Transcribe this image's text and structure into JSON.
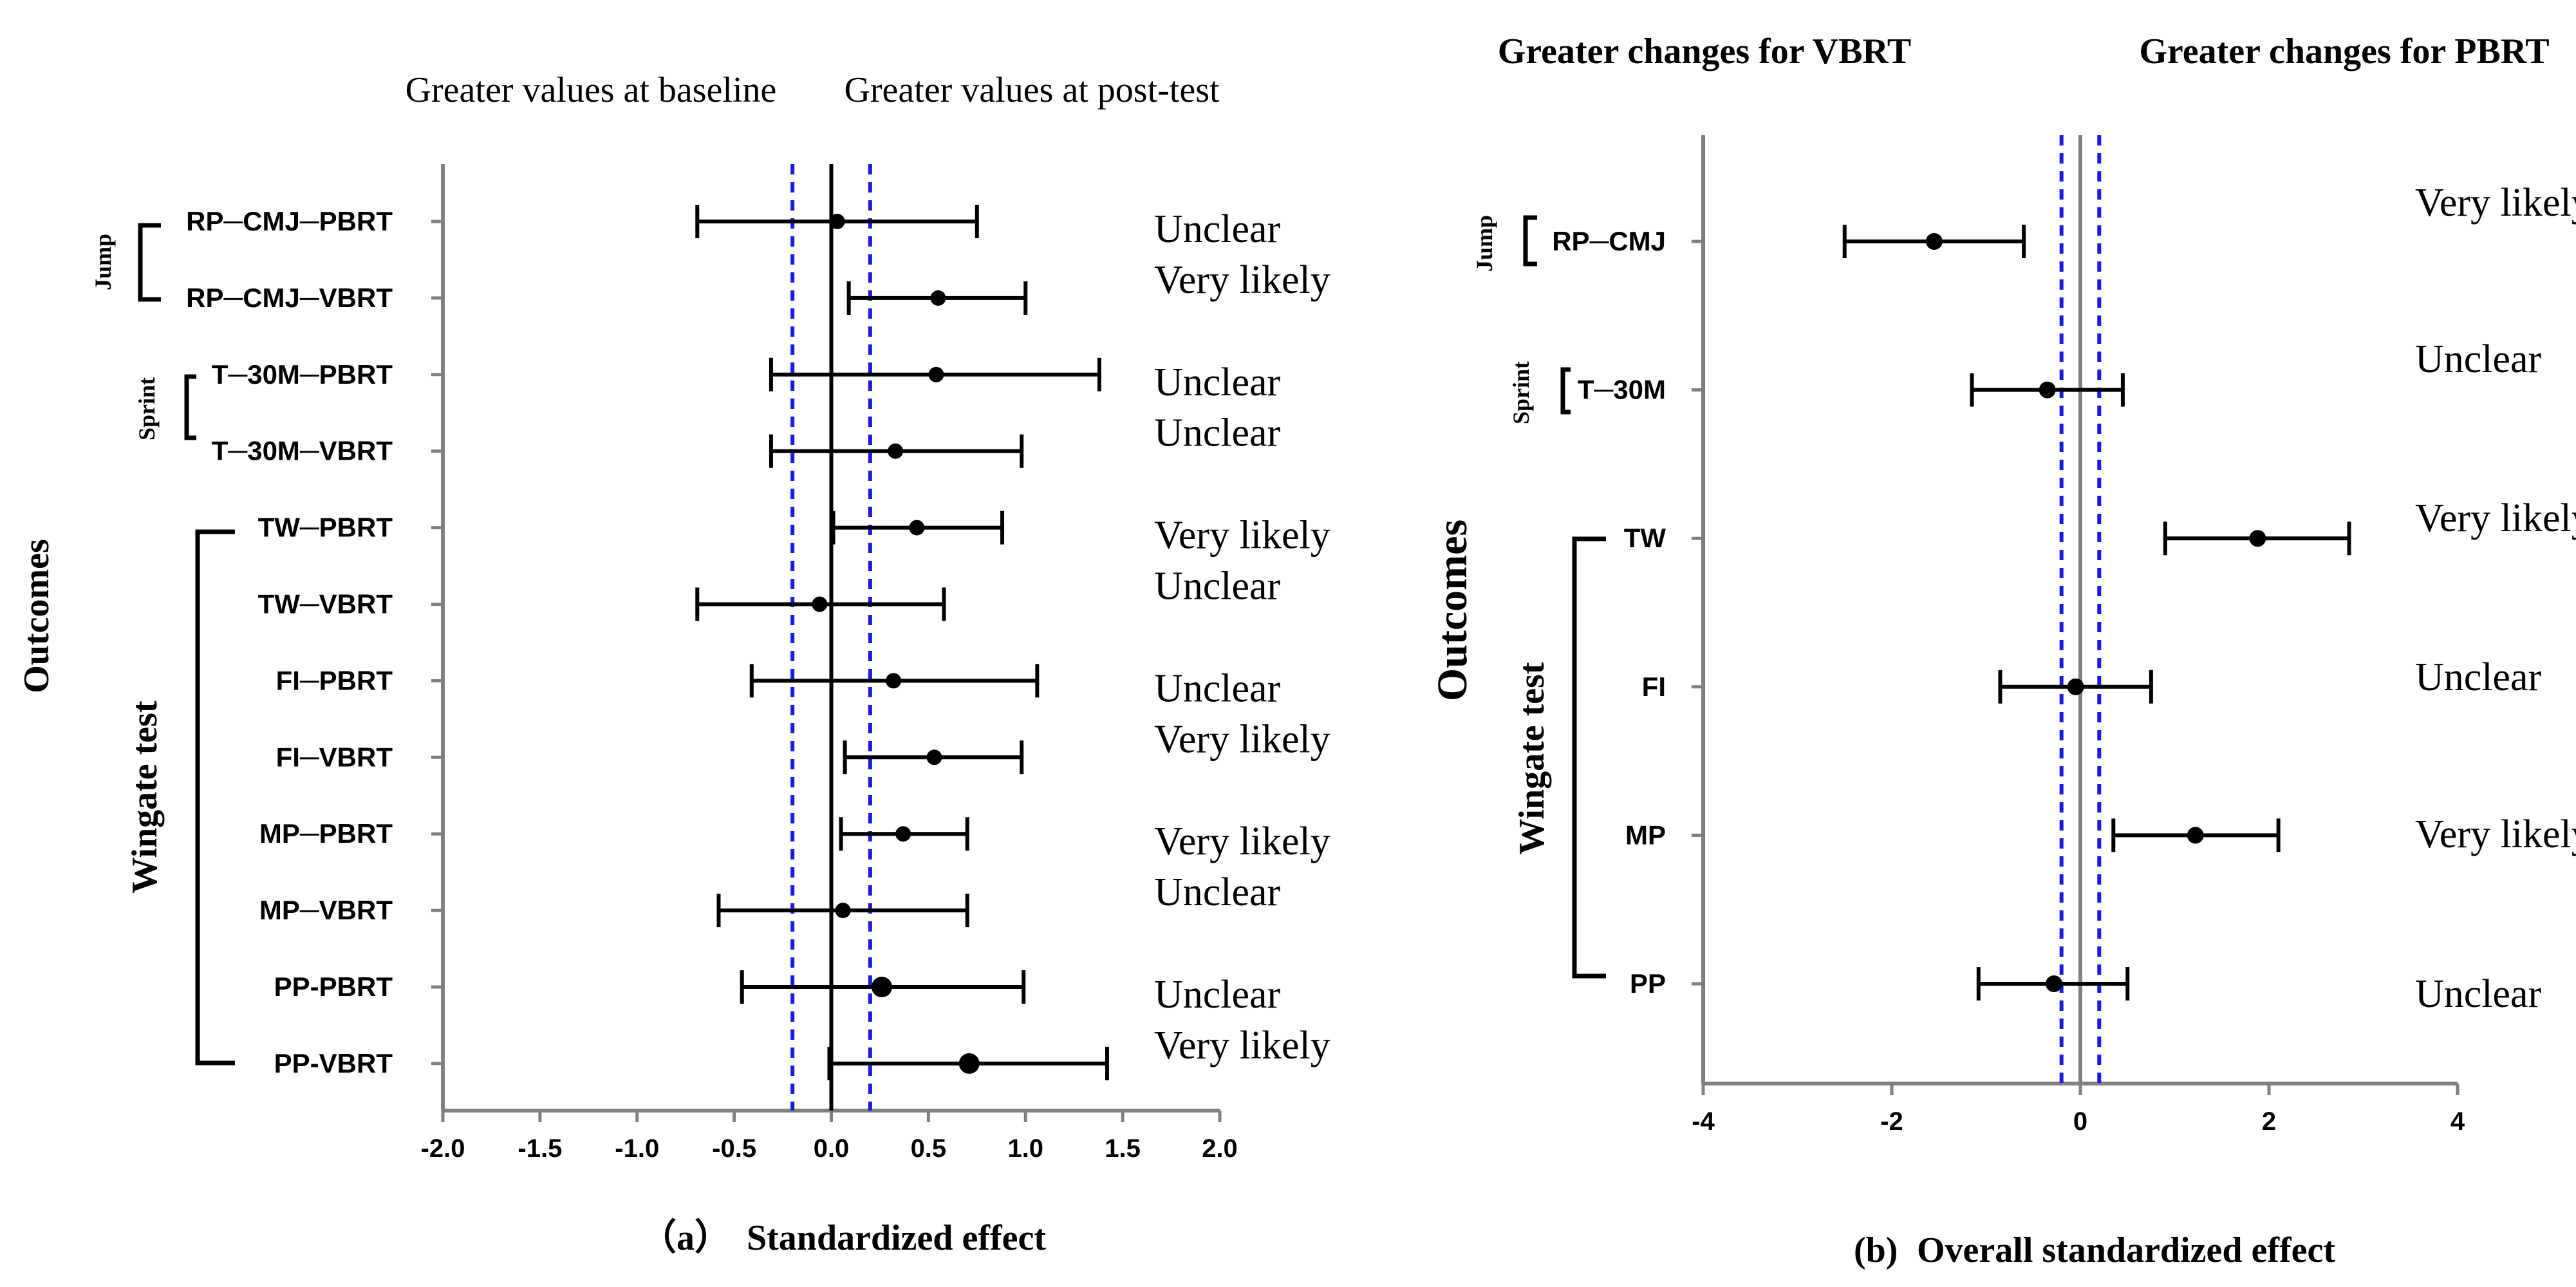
{
  "chart_data": [
    {
      "type": "scatter",
      "subtype": "forest",
      "panel_label": "（a）",
      "xlabel": "Standardized effect",
      "ylabel": "Outcomes",
      "xlim": [
        -2.0,
        2.0
      ],
      "xticks": [
        "-2.0",
        "-1.5",
        "-1.0",
        "-0.5",
        "0.0",
        "0.5",
        "1.0",
        "1.5",
        "2.0"
      ],
      "reference_line": 0,
      "threshold_lines": [
        -0.2,
        0.2
      ],
      "header_left": "Greater values at baseline",
      "header_right": "Greater values at post-test",
      "groups": [
        {
          "name": "Jump",
          "rows": [
            0,
            1
          ]
        },
        {
          "name": "Sprint",
          "rows": [
            2,
            3
          ]
        },
        {
          "name": "Wingate test",
          "rows": [
            4,
            11
          ]
        }
      ],
      "rows": [
        {
          "label": "RP─CMJ─PBRT",
          "value": 0.03,
          "lower": -0.69,
          "upper": 0.75,
          "interpretation": "Unclear"
        },
        {
          "label": "RP─CMJ─VBRT",
          "value": 0.55,
          "lower": 0.09,
          "upper": 1.0,
          "interpretation": "Very likely"
        },
        {
          "label": "T─30M─PBRT",
          "value": 0.54,
          "lower": -0.31,
          "upper": 1.38,
          "interpretation": "Unclear"
        },
        {
          "label": "T─30M─VBRT",
          "value": 0.33,
          "lower": -0.31,
          "upper": 0.98,
          "interpretation": "Unclear"
        },
        {
          "label": "TW─PBRT",
          "value": 0.44,
          "lower": 0.01,
          "upper": 0.88,
          "interpretation": "Very likely"
        },
        {
          "label": "TW─VBRT",
          "value": -0.06,
          "lower": -0.69,
          "upper": 0.58,
          "interpretation": "Unclear"
        },
        {
          "label": "FI─PBRT",
          "value": 0.32,
          "lower": -0.41,
          "upper": 1.06,
          "interpretation": "Unclear"
        },
        {
          "label": "FI─VBRT",
          "value": 0.53,
          "lower": 0.07,
          "upper": 0.98,
          "interpretation": "Very likely"
        },
        {
          "label": "MP─PBRT",
          "value": 0.37,
          "lower": 0.05,
          "upper": 0.7,
          "interpretation": "Very likely"
        },
        {
          "label": "MP─VBRT",
          "value": 0.06,
          "lower": -0.58,
          "upper": 0.7,
          "interpretation": "Unclear"
        },
        {
          "label": "PP-PBRT",
          "value": 0.26,
          "lower": -0.46,
          "upper": 0.99,
          "interpretation": "Unclear"
        },
        {
          "label": "PP-VBRT",
          "value": 0.71,
          "lower": -0.01,
          "upper": 1.42,
          "interpretation": "Very likely"
        }
      ]
    },
    {
      "type": "scatter",
      "subtype": "forest",
      "panel_label": "(b)",
      "xlabel": "Overall standardized effect",
      "ylabel": "Outcomes",
      "xlim": [
        -4,
        4
      ],
      "xticks": [
        "-4",
        "-2",
        "0",
        "2",
        "4"
      ],
      "reference_line": 0,
      "threshold_lines": [
        -0.2,
        0.2
      ],
      "header_left": "Greater changes for  VBRT",
      "header_right": "Greater changes for  PBRT",
      "groups": [
        {
          "name": "Jump",
          "rows": [
            0,
            0
          ]
        },
        {
          "name": "Sprint",
          "rows": [
            1,
            1
          ]
        },
        {
          "name": "Wingate test",
          "rows": [
            2,
            5
          ]
        }
      ],
      "rows": [
        {
          "label": "RP─CMJ",
          "value": -1.55,
          "lower": -2.5,
          "upper": -0.6,
          "interpretation": "Very likely"
        },
        {
          "label": "T─30M",
          "value": -0.35,
          "lower": -1.15,
          "upper": 0.45,
          "interpretation": "Unclear"
        },
        {
          "label": "TW",
          "value": 1.88,
          "lower": 0.9,
          "upper": 2.85,
          "interpretation": "Very likely"
        },
        {
          "label": "FI",
          "value": -0.05,
          "lower": -0.85,
          "upper": 0.75,
          "interpretation": "Unclear"
        },
        {
          "label": "MP",
          "value": 1.22,
          "lower": 0.35,
          "upper": 2.1,
          "interpretation": "Very likely"
        },
        {
          "label": "PP",
          "value": -0.28,
          "lower": -1.08,
          "upper": 0.5,
          "interpretation": "Unclear"
        }
      ]
    }
  ]
}
